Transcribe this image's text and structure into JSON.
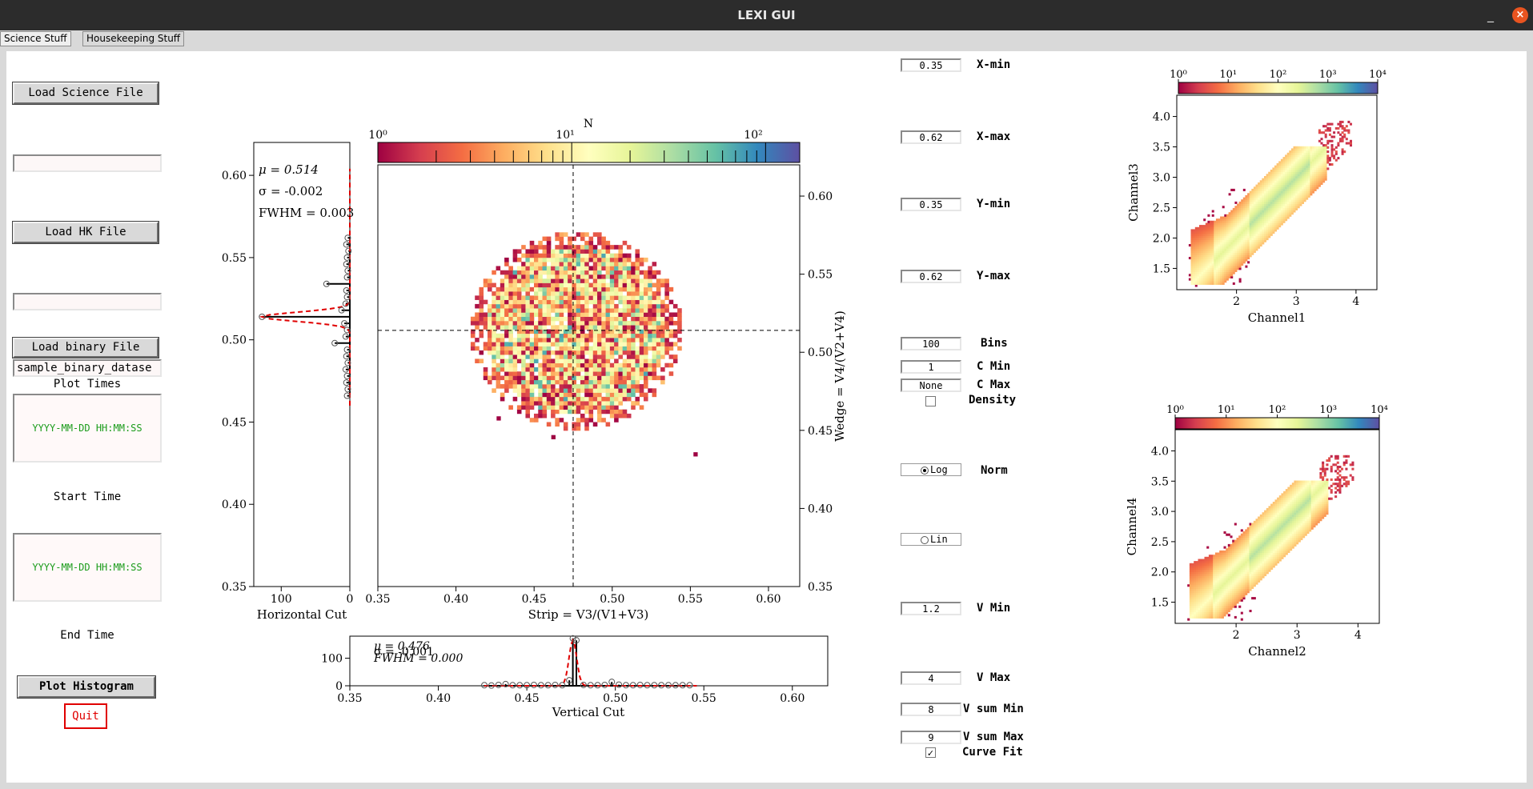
{
  "window": {
    "title": "LEXI GUI",
    "minimize": "_",
    "close": "×"
  },
  "tabs": [
    {
      "label": "Science Stuff"
    },
    {
      "label": "Housekeeping Stuff"
    }
  ],
  "left_panel": {
    "load_science": "Load Science File",
    "science_path": "",
    "load_hk": "Load HK File",
    "hk_path": "",
    "load_binary": "Load binary File",
    "binary_path": "sample_binary_datase",
    "plot_times": "Plot Times",
    "start_placeholder": "YYYY-MM-DD HH:MM:SS",
    "start_label": "Start Time",
    "end_placeholder": "YYYY-MM-DD HH:MM:SS",
    "end_label": "End Time",
    "plot_histogram": "Plot Histogram",
    "quit": "Quit"
  },
  "controls": {
    "xmin": {
      "value": "0.35",
      "label": "X-min"
    },
    "xmax": {
      "value": "0.62",
      "label": "X-max"
    },
    "ymin": {
      "value": "0.35",
      "label": "Y-min"
    },
    "ymax": {
      "value": "0.62",
      "label": "Y-max"
    },
    "bins": {
      "value": "100",
      "label": "Bins"
    },
    "cmin": {
      "value": "1",
      "label": "C Min"
    },
    "cmax": {
      "value": "None",
      "label": "C Max"
    },
    "density": {
      "label": "Density",
      "checked": false
    },
    "norm_label": "Norm",
    "norm_log": {
      "label": "Log",
      "selected": true
    },
    "norm_lin": {
      "label": "Lin",
      "selected": false
    },
    "vmin": {
      "value": "1.2",
      "label": "V Min"
    },
    "vmax": {
      "value": "4",
      "label": "V Max"
    },
    "vsum_min": {
      "value": "8",
      "label": "V sum Min"
    },
    "vsum_max": {
      "value": "9",
      "label": "V sum Max"
    },
    "curve_fit": {
      "label": "Curve Fit",
      "checked": true,
      "mark": "✓"
    }
  },
  "colors": {
    "accent_quit": "#e00000",
    "time_text": "#1b9c1b",
    "fit_line": "#e00000"
  },
  "chart_data": [
    {
      "type": "heatmap",
      "title": "",
      "xlabel": "Strip = V3/(V1+V3)",
      "ylabel": "Wedge = V4/(V2+V4)",
      "xlim": [
        0.35,
        0.62
      ],
      "ylim": [
        0.35,
        0.62
      ],
      "xticks": [
        "0.35",
        "0.40",
        "0.45",
        "0.50",
        "0.55",
        "0.60"
      ],
      "yticks": [
        "0.40",
        "0.45",
        "0.50",
        "0.55",
        "0.60"
      ],
      "colorbar": {
        "label": "N",
        "scale": "log",
        "range": [
          1,
          150
        ],
        "ticks": [
          "10⁰",
          "10¹",
          "10²"
        ]
      },
      "cross_hair": {
        "x": 0.475,
        "y": 0.514
      },
      "blob": {
        "center_x": 0.477,
        "center_y": 0.514,
        "radius_x": 0.063,
        "radius_y": 0.059
      },
      "outliers": [
        [
          0.426,
          0.459
        ],
        [
          0.461,
          0.447
        ],
        [
          0.552,
          0.436
        ]
      ]
    },
    {
      "type": "line",
      "title": "Horizontal Cut",
      "orientation": "horizontal",
      "xlim": [
        140,
        0
      ],
      "ylim": [
        0.35,
        0.62
      ],
      "xticks": [
        "100",
        "0"
      ],
      "yticks": [
        "0.35",
        "0.40",
        "0.45",
        "0.50",
        "0.55",
        "0.60"
      ],
      "annotations": [
        "μ = 0.514",
        "σ = -0.002",
        "FWHM = 0.003"
      ],
      "fit": {
        "mu": 0.514,
        "sigma": -0.002,
        "fwhm": 0.003,
        "peak": 128
      },
      "points": [
        [
          4,
          0.466
        ],
        [
          3,
          0.47
        ],
        [
          5,
          0.474
        ],
        [
          4,
          0.478
        ],
        [
          6,
          0.482
        ],
        [
          3,
          0.486
        ],
        [
          5,
          0.49
        ],
        [
          4,
          0.494
        ],
        [
          22,
          0.498
        ],
        [
          6,
          0.502
        ],
        [
          4,
          0.506
        ],
        [
          8,
          0.51
        ],
        [
          128,
          0.514
        ],
        [
          12,
          0.518
        ],
        [
          6,
          0.522
        ],
        [
          4,
          0.526
        ],
        [
          5,
          0.53
        ],
        [
          34,
          0.534
        ],
        [
          4,
          0.538
        ],
        [
          3,
          0.542
        ],
        [
          5,
          0.546
        ],
        [
          4,
          0.55
        ],
        [
          2,
          0.554
        ],
        [
          5,
          0.558
        ],
        [
          3,
          0.562
        ]
      ]
    },
    {
      "type": "line",
      "title": "Vertical Cut",
      "xlim": [
        0.35,
        0.62
      ],
      "ylim": [
        0,
        180
      ],
      "xticks": [
        "0.35",
        "0.40",
        "0.45",
        "0.50",
        "0.55",
        "0.60"
      ],
      "yticks": [
        "0",
        "100"
      ],
      "annotations": [
        "μ = 0.476",
        "σ = -0.001",
        "FWHM = 0.000"
      ],
      "fit": {
        "mu": 0.476,
        "sigma": -0.001,
        "fwhm": 0.0,
        "peak": 165
      },
      "points": [
        [
          0.426,
          2
        ],
        [
          0.43,
          1
        ],
        [
          0.434,
          3
        ],
        [
          0.438,
          6
        ],
        [
          0.442,
          2
        ],
        [
          0.446,
          2
        ],
        [
          0.45,
          2
        ],
        [
          0.454,
          3
        ],
        [
          0.458,
          2
        ],
        [
          0.462,
          2
        ],
        [
          0.466,
          3
        ],
        [
          0.47,
          2
        ],
        [
          0.474,
          20
        ],
        [
          0.476,
          172
        ],
        [
          0.478,
          165
        ],
        [
          0.482,
          3
        ],
        [
          0.486,
          2
        ],
        [
          0.49,
          2
        ],
        [
          0.494,
          3
        ],
        [
          0.498,
          14
        ],
        [
          0.502,
          4
        ],
        [
          0.506,
          2
        ],
        [
          0.51,
          2
        ],
        [
          0.514,
          3
        ],
        [
          0.518,
          2
        ],
        [
          0.522,
          2
        ],
        [
          0.526,
          2
        ],
        [
          0.53,
          2
        ],
        [
          0.534,
          2
        ],
        [
          0.538,
          2
        ],
        [
          0.542,
          2
        ]
      ]
    },
    {
      "type": "heatmap",
      "xlabel": "Channel1",
      "ylabel": "Channel3",
      "xlim": [
        1.0,
        4.35
      ],
      "ylim": [
        1.15,
        4.35
      ],
      "xticks": [
        "2",
        "3",
        "4"
      ],
      "yticks": [
        "1.5",
        "2.0",
        "2.5",
        "3.0",
        "3.5",
        "4.0"
      ],
      "colorbar": {
        "scale": "log",
        "range": [
          1,
          10000
        ],
        "ticks": [
          "10⁰",
          "10¹",
          "10²",
          "10³",
          "10⁴"
        ]
      }
    },
    {
      "type": "heatmap",
      "xlabel": "Channel2",
      "ylabel": "Channel4",
      "xlim": [
        1.0,
        4.35
      ],
      "ylim": [
        1.15,
        4.35
      ],
      "xticks": [
        "2",
        "3",
        "4"
      ],
      "yticks": [
        "1.5",
        "2.0",
        "2.5",
        "3.0",
        "3.5",
        "4.0"
      ],
      "colorbar": {
        "scale": "log",
        "range": [
          1,
          10000
        ],
        "ticks": [
          "10⁰",
          "10¹",
          "10²",
          "10³",
          "10⁴"
        ]
      }
    }
  ]
}
